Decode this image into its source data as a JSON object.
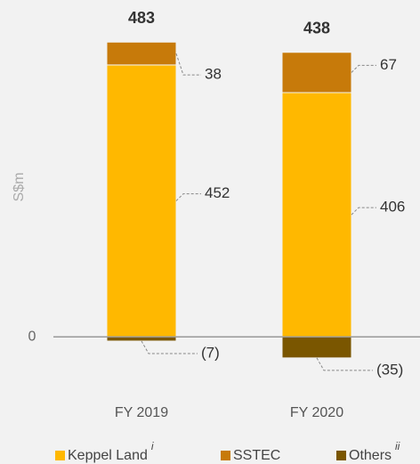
{
  "chart_data": {
    "type": "stacked_bar",
    "y_label": "S$m",
    "categories": [
      "FY 2019",
      "FY 2020"
    ],
    "totals": [
      483,
      438
    ],
    "series": [
      {
        "name": "Keppel Land",
        "superscript": "i",
        "color": "#ffb800",
        "values": [
          452,
          406
        ]
      },
      {
        "name": "SSTEC",
        "color": "#c77a0a",
        "values": [
          38,
          67
        ]
      },
      {
        "name": "Others",
        "superscript": "ii",
        "color": "#7a5600",
        "values": [
          -7,
          -35
        ],
        "value_labels": [
          "(7)",
          "(35)"
        ]
      }
    ],
    "ylim": [
      -50,
      520
    ],
    "yticks": [
      0
    ]
  }
}
